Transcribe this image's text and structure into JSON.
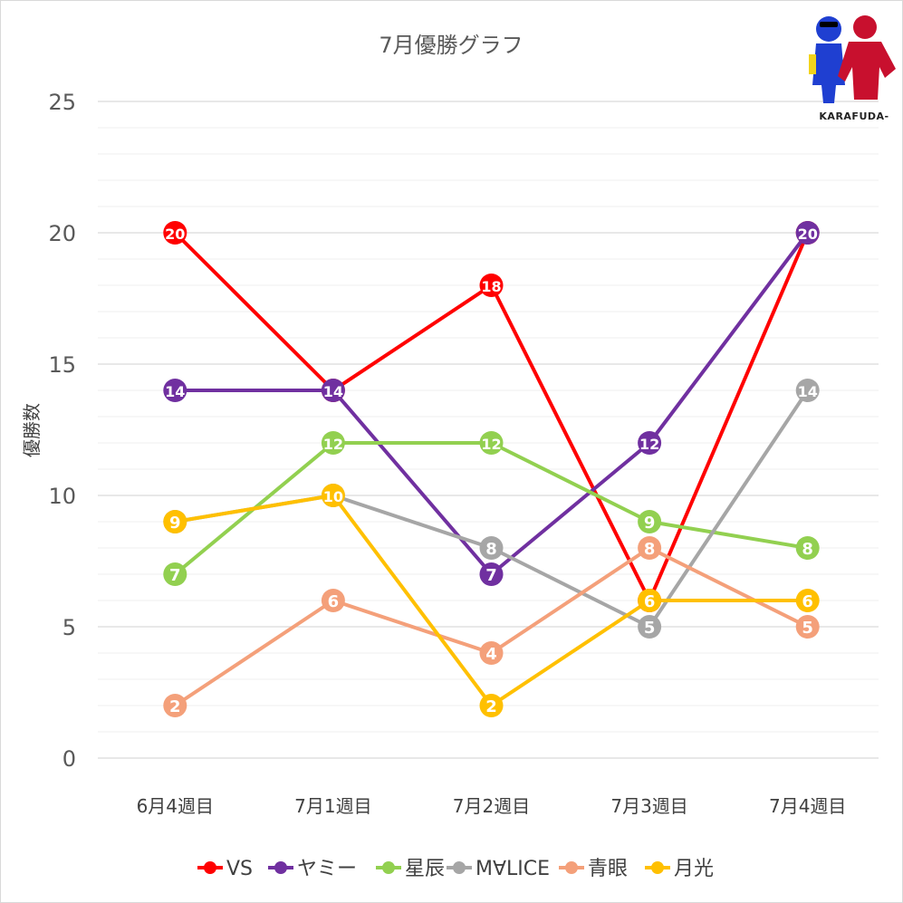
{
  "chart_data": {
    "type": "line",
    "title": "7月優勝グラフ",
    "xlabel": "",
    "ylabel": "優勝数",
    "categories": [
      "6月4週目",
      "7月1週目",
      "7月2週目",
      "7月3週目",
      "7月4週目"
    ],
    "ylim": [
      0,
      25
    ],
    "yticks": [
      0,
      5,
      10,
      15,
      20,
      25
    ],
    "grid": true,
    "legend": "bottom",
    "series": [
      {
        "name": "VS",
        "color": "#ff0000",
        "values": [
          20,
          14,
          18,
          6,
          20
        ]
      },
      {
        "name": "ヤミー",
        "color": "#7030a0",
        "values": [
          14,
          14,
          7,
          12,
          20
        ]
      },
      {
        "name": "星辰",
        "color": "#92d050",
        "values": [
          7,
          12,
          12,
          9,
          8
        ]
      },
      {
        "name": "M∀LICE",
        "color": "#a6a6a6",
        "values": [
          9,
          10,
          8,
          5,
          14
        ]
      },
      {
        "name": "青眼",
        "color": "#f4a07a",
        "values": [
          2,
          6,
          4,
          8,
          5
        ]
      },
      {
        "name": "月光",
        "color": "#ffc000",
        "values": [
          9,
          10,
          2,
          6,
          6
        ]
      }
    ]
  },
  "logo": {
    "text": "KARAFUDA-"
  }
}
